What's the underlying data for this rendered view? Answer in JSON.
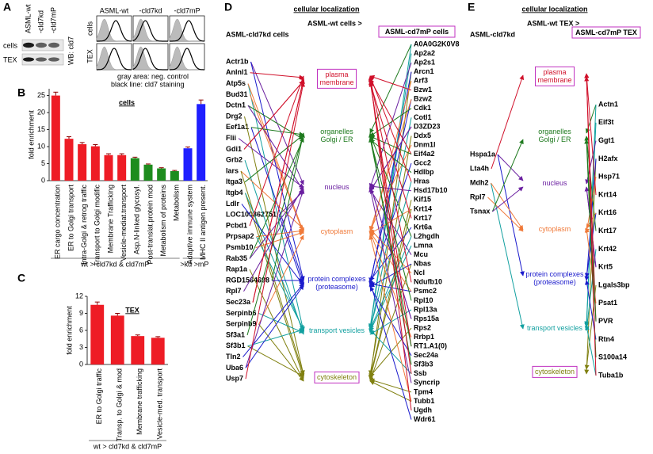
{
  "panel_labels": [
    "A",
    "B",
    "C",
    "D",
    "E"
  ],
  "panel_a": {
    "blot_lanes": [
      "ASML-wt",
      "-cld7kd",
      "-cld7mP"
    ],
    "blot_rows": [
      "cells",
      "TEX"
    ],
    "blot_antibody": "WB: cld7",
    "flow_columns": [
      "ASML-wt",
      "-cld7kd",
      "-cld7mP"
    ],
    "flow_rows": [
      "cells",
      "TEX"
    ],
    "flow_legend": [
      "gray area: neg. control",
      "black line: cld7 staining"
    ]
  },
  "chart_data": [
    {
      "type": "bar",
      "title": "cells",
      "y_label": "fold enrichment",
      "categories": [
        "ER cargo concentration",
        "ER to Golgi transport",
        "Intra-Golgi & retrog traffic",
        "Transport to Golgi modific",
        "Membrane Trafficking",
        "Vesicle-mediat.transport",
        "Asp.N-linked glycosyl.",
        "Post-translat.protein mod",
        "Metabolism of proteins",
        "Metabolism",
        "Adaptive immune system",
        "MHC II antigen present."
      ],
      "values": [
        25,
        12.3,
        10.7,
        10.1,
        7.5,
        7.5,
        6.6,
        4.7,
        3.6,
        2.8,
        9.5,
        22.5
      ],
      "errors": [
        1.0,
        0.6,
        0.5,
        0.5,
        0.4,
        0.4,
        0.3,
        0.2,
        0.2,
        0.2,
        0.4,
        1.2
      ],
      "colors": [
        "#ee1c25",
        "#ee1c25",
        "#ee1c25",
        "#ee1c25",
        "#ee1c25",
        "#ee1c25",
        "#1e8c1e",
        "#1e8c1e",
        "#1e8c1e",
        "#1e8c1e",
        "#1f1fff",
        "#1f1fff"
      ],
      "group_labels": [
        "wt > cld7kd & cld7mP",
        ">kd >mP"
      ],
      "ylim": [
        0,
        27
      ],
      "yticks": [
        0,
        5,
        10,
        15,
        20,
        25
      ]
    },
    {
      "type": "bar",
      "title": "TEX",
      "y_label": "fold enrichment",
      "categories": [
        "ER to Golgi traffic",
        "Transp. to Golgi & mod",
        "Membrane trafficking",
        "Vesicle-med. transport"
      ],
      "values": [
        10.5,
        8.6,
        5.0,
        4.7
      ],
      "errors": [
        0.5,
        0.4,
        0.2,
        0.2
      ],
      "colors": [
        "#ee1c25",
        "#ee1c25",
        "#ee1c25",
        "#ee1c25"
      ],
      "group_labels": [
        "wt > cld7kd & cld7mP"
      ],
      "ylim": [
        0,
        12
      ],
      "yticks": [
        0,
        3,
        6,
        9,
        12
      ]
    }
  ],
  "compartment_colors": [
    "#d0102a",
    "#1e7a1e",
    "#6a1fa0",
    "#f07a3a",
    "#1a1acc",
    "#12a0a0",
    "#808010"
  ],
  "panel_d": {
    "title": "cellular localization",
    "left_header": "ASML-cld7kd cells",
    "middle_header": "ASML-wt cells >",
    "right_header": "ASML-cd7mP cells",
    "compartments": [
      [
        "plasma",
        "membrane"
      ],
      [
        "organelles",
        "Golgi / ER"
      ],
      [
        "nucleus"
      ],
      [
        "cytoplasm"
      ],
      [
        "protein complexes",
        "(proteasome)"
      ],
      [
        "transport vesicles"
      ],
      [
        "cytoskeleton"
      ]
    ],
    "left_genes": [
      "Actr1b",
      "Anlnl1",
      "Atp5s",
      "Bud31",
      "Dctn1",
      "Drg2",
      "Eef1a1",
      "Flii",
      "Gdi1",
      "Grb2",
      "Iars",
      "Itga3",
      "Itgb4",
      "Ldlr",
      "LOC100362751",
      "Pcbd1",
      "Prpsap2",
      "Psmb10",
      "Rab35",
      "Rap1a",
      "RGD1564698",
      "Rpl7",
      "Sec23a",
      "Serpinb6",
      "Serpinb9",
      "Sf3a1",
      "Sf3b1",
      "Tln2",
      "Uba6",
      "Usp7"
    ],
    "right_genes": [
      "A0A0G2K0V8",
      "Ap2a2",
      "Ap2s1",
      "Arcn1",
      "Arf3",
      "Bzw1",
      "Bzw2",
      "Cdk1",
      "Cotl1",
      "D3ZD23",
      "Ddx5",
      "Dnm1l",
      "Eif4a2",
      "Gcc2",
      "Hdlbp",
      "Hras",
      "Hsd17b10",
      "Kif15",
      "Krt14",
      "Krt17",
      "Krt6a",
      "L2hgdh",
      "Lmna",
      "Mcu",
      "Nbas",
      "Ncl",
      "Ndufb10",
      "Psmc2",
      "Rpl10",
      "Rpl13a",
      "Rps15a",
      "Rps2",
      "Rrbp1",
      "RT1.A1(0)",
      "Sec24a",
      "Sf3b3",
      "Ssb",
      "Syncrip",
      "Tpm4",
      "Tubb1",
      "Ugdh",
      "Wdr61"
    ]
  },
  "panel_e": {
    "title": "cellular localization",
    "left_header": "ASML-cld7kd",
    "middle_header": "ASML-wt TEX >",
    "right_header": "ASML-cd7mP TEX",
    "compartments": [
      [
        "plasma",
        "membrane"
      ],
      [
        "organelles",
        "Golgi / ER"
      ],
      [
        "nucleus"
      ],
      [
        "cytoplasm"
      ],
      [
        "protein complexes",
        "(proteasome)"
      ],
      [
        "transport vesicles"
      ],
      [
        "cytoskeleton"
      ]
    ],
    "left_genes": [
      "Hspa1a",
      "Lta4h",
      "Mdh2",
      "Rpl7",
      "Tsnax"
    ],
    "right_genes": [
      "Actn1",
      "Eif3t",
      "Ggt1",
      "H2afx",
      "Hsp71",
      "Krt14",
      "Krt16",
      "Krt17",
      "Krt42",
      "Krt5",
      "Lgals3bp",
      "Psat1",
      "PVR",
      "Rtn4",
      "S100a14",
      "Tuba1b"
    ]
  }
}
